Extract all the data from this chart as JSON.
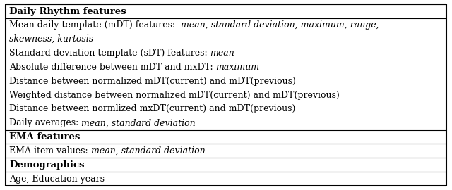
{
  "sections": [
    {
      "header": "Daily Rhythm features",
      "rows": [
        [
          {
            "text": "Mean daily template (mDT) features:  ",
            "style": "normal"
          },
          {
            "text": "mean, standard deviation, maximum, range,",
            "style": "italic"
          }
        ],
        [
          {
            "text": "skewness, kurtosis",
            "style": "italic"
          }
        ],
        [
          {
            "text": "Standard deviation template (sDT) features: ",
            "style": "normal"
          },
          {
            "text": "mean",
            "style": "italic"
          }
        ],
        [
          {
            "text": "Absolute difference between mDT and mxDT: ",
            "style": "normal"
          },
          {
            "text": "maximum",
            "style": "italic"
          }
        ],
        [
          {
            "text": "Distance between normalized mDT(current) and mDT(previous)",
            "style": "normal"
          }
        ],
        [
          {
            "text": "Weighted distance between normalized mDT(current) and mDT(previous)",
            "style": "normal"
          }
        ],
        [
          {
            "text": "Distance between normlized mxDT(current) and mDT(previous)",
            "style": "normal"
          }
        ],
        [
          {
            "text": "Daily averages: ",
            "style": "normal"
          },
          {
            "text": "mean, standard deviation",
            "style": "italic"
          }
        ]
      ]
    },
    {
      "header": "EMA features",
      "rows": [
        [
          {
            "text": "EMA item values: ",
            "style": "normal"
          },
          {
            "text": "mean, standard deviation",
            "style": "italic"
          }
        ]
      ]
    },
    {
      "header": "Demographics",
      "rows": [
        [
          {
            "text": "Age, Education years",
            "style": "normal"
          }
        ]
      ]
    }
  ],
  "font_size": 9.0,
  "header_font_size": 9.5,
  "bg_color": "#ffffff",
  "border_color": "#000000",
  "text_color": "#000000",
  "fig_width": 6.4,
  "fig_height": 2.7,
  "dpi": 100
}
